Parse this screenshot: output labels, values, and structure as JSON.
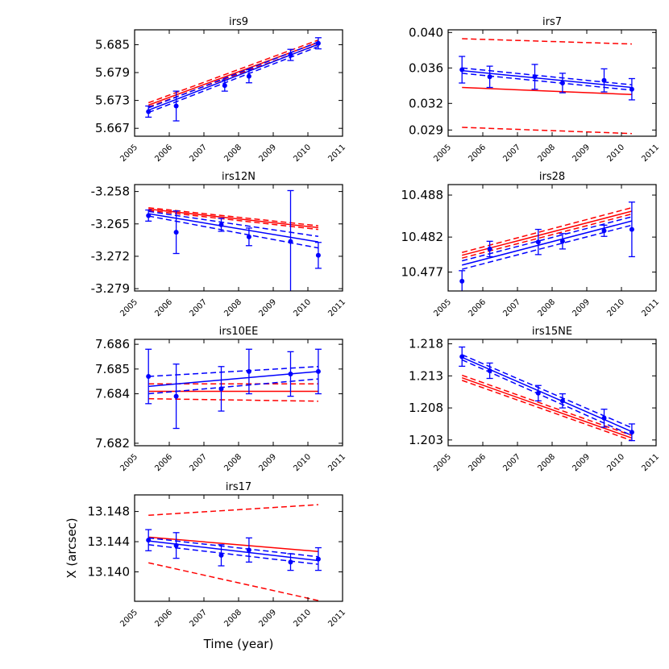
{
  "colors": {
    "fit_line": "#ff0000",
    "data": "#0000ff",
    "axes": "#000000"
  },
  "figure": {
    "xlabel": "Time (year)",
    "ylabel": "X (arcsec)"
  },
  "chart_data": [
    {
      "type": "line",
      "title": "irs9",
      "xlim": [
        2005,
        2011
      ],
      "ylim": [
        5.6653,
        5.6882
      ],
      "xticks": [
        "2005",
        "2006",
        "2007",
        "2008",
        "2009",
        "2010",
        "2011"
      ],
      "yticks": [
        5.667,
        5.673,
        5.679,
        5.685
      ],
      "ytick_labels": [
        "5.667",
        "5.673",
        "5.679",
        "5.685"
      ],
      "points": {
        "x": [
          2005.4,
          2006.2,
          2007.6,
          2008.3,
          2009.5,
          2010.3
        ],
        "y": [
          5.6706,
          5.6718,
          5.6762,
          5.6782,
          5.6828,
          5.6853
        ],
        "err": [
          0.0012,
          0.0032,
          0.0012,
          0.0014,
          0.0012,
          0.0012
        ]
      },
      "red_fit": {
        "x": [
          2005.4,
          2010.3
        ],
        "y": [
          5.672,
          5.6855
        ],
        "upper": [
          5.6725,
          5.686
        ],
        "lower": [
          5.6716,
          5.685
        ]
      },
      "blue_fit": {
        "x": [
          2005.4,
          2010.3
        ],
        "y": [
          5.6709,
          5.6851
        ],
        "upper": [
          5.6714,
          5.6856
        ],
        "lower": [
          5.6704,
          5.6846
        ]
      }
    },
    {
      "type": "line",
      "title": "irs7",
      "xlim": [
        2005,
        2011
      ],
      "ylim": [
        0.0283,
        0.0403
      ],
      "xticks": [
        "2005",
        "2006",
        "2007",
        "2008",
        "2009",
        "2010",
        "2011"
      ],
      "yticks": [
        0.029,
        0.032,
        0.036,
        0.04
      ],
      "ytick_labels": [
        "0.029",
        "0.032",
        "0.036",
        "0.040"
      ],
      "points": {
        "x": [
          2005.4,
          2006.2,
          2007.5,
          2008.3,
          2009.5,
          2010.3
        ],
        "y": [
          0.0358,
          0.035,
          0.035,
          0.0343,
          0.0346,
          0.0336
        ],
        "err": [
          0.0015,
          0.0012,
          0.0014,
          0.0011,
          0.0013,
          0.0012
        ]
      },
      "red_fit": {
        "x": [
          2005.4,
          2010.3
        ],
        "y": [
          0.0338,
          0.033
        ],
        "upper": [
          0.0393,
          0.0387
        ],
        "lower": [
          0.0293,
          0.0286
        ]
      },
      "blue_fit": {
        "x": [
          2005.4,
          2010.3
        ],
        "y": [
          0.0357,
          0.0338
        ],
        "upper": [
          0.036,
          0.0341
        ],
        "lower": [
          0.0354,
          0.0335
        ]
      }
    },
    {
      "type": "line",
      "title": "irs12N",
      "xlim": [
        2005,
        2011
      ],
      "ylim": [
        -3.2795,
        -3.2565
      ],
      "xticks": [
        "2005",
        "2006",
        "2007",
        "2008",
        "2009",
        "2010",
        "2011"
      ],
      "yticks": [
        -3.258,
        -3.265,
        -3.272,
        -3.279
      ],
      "ytick_labels": [
        "-3.258",
        "-3.265",
        "-3.272",
        "-3.279"
      ],
      "points": {
        "x": [
          2005.4,
          2006.2,
          2007.5,
          2008.3,
          2009.5,
          2010.3
        ],
        "y": [
          -3.2632,
          -3.2668,
          -3.2652,
          -3.2678,
          -3.2688,
          -3.2718
        ],
        "err": [
          0.0012,
          0.0046,
          0.0014,
          0.0019,
          0.011,
          0.0028
        ]
      },
      "red_fit": {
        "x": [
          2005.4,
          2010.3
        ],
        "y": [
          -3.2618,
          -3.2658
        ],
        "upper": [
          -3.2615,
          -3.2654
        ],
        "lower": [
          -3.2621,
          -3.2662
        ]
      },
      "blue_fit": {
        "x": [
          2005.4,
          2010.3
        ],
        "y": [
          -3.2628,
          -3.2689
        ],
        "upper": [
          -3.2623,
          -3.2677
        ],
        "lower": [
          -3.2633,
          -3.2702
        ]
      }
    },
    {
      "type": "line",
      "title": "irs28",
      "xlim": [
        2005,
        2011
      ],
      "ylim": [
        10.4743,
        10.4895
      ],
      "xticks": [
        "2005",
        "2006",
        "2007",
        "2008",
        "2009",
        "2010",
        "2011"
      ],
      "yticks": [
        10.477,
        10.482,
        10.488
      ],
      "ytick_labels": [
        "10.477",
        "10.482",
        "10.488"
      ],
      "points": {
        "x": [
          2005.4,
          2006.2,
          2007.6,
          2008.3,
          2009.5,
          2010.3
        ],
        "y": [
          10.4757,
          10.4803,
          10.4813,
          10.4814,
          10.4829,
          10.4831
        ],
        "err": [
          0.0015,
          0.0011,
          0.0018,
          0.0011,
          0.0008,
          0.0039
        ]
      },
      "red_fit": {
        "x": [
          2005.4,
          2010.3
        ],
        "y": [
          10.4794,
          10.4857
        ],
        "upper": [
          10.4798,
          10.4862
        ],
        "lower": [
          10.479,
          10.4853
        ]
      },
      "blue_fit": {
        "x": [
          2005.4,
          2010.3
        ],
        "y": [
          10.478,
          10.4843
        ],
        "upper": [
          10.4786,
          10.4849
        ],
        "lower": [
          10.4774,
          10.4837
        ]
      }
    },
    {
      "type": "line",
      "title": "irs10EE",
      "xlim": [
        2005,
        2011
      ],
      "ylim": [
        7.6819,
        7.6862
      ],
      "xticks": [
        "2005",
        "2006",
        "2007",
        "2008",
        "2009",
        "2010",
        "2011"
      ],
      "yticks": [
        7.682,
        7.684,
        7.685,
        7.686
      ],
      "ytick_labels": [
        "7.682",
        "7.684",
        "7.685",
        "7.686"
      ],
      "points": {
        "x": [
          2005.4,
          2006.2,
          2007.5,
          2008.3,
          2009.5,
          2010.3
        ],
        "y": [
          7.6847,
          7.6839,
          7.6842,
          7.6849,
          7.6848,
          7.6849
        ],
        "err": [
          0.0011,
          0.0013,
          0.0009,
          0.0009,
          0.0009,
          0.0009
        ]
      },
      "red_fit": {
        "x": [
          2005.4,
          2010.3
        ],
        "y": [
          7.6841,
          7.6841
        ],
        "upper": [
          7.6844,
          7.6844
        ],
        "lower": [
          7.6838,
          7.6837
        ]
      },
      "blue_fit": {
        "x": [
          2005.4,
          2010.3
        ],
        "y": [
          7.6843,
          7.6849
        ],
        "upper": [
          7.6847,
          7.6851
        ],
        "lower": [
          7.684,
          7.6846
        ]
      }
    },
    {
      "type": "line",
      "title": "irs15NE",
      "xlim": [
        2005,
        2011
      ],
      "ylim": [
        1.2021,
        1.2187
      ],
      "xticks": [
        "2005",
        "2006",
        "2007",
        "2008",
        "2009",
        "2010",
        "2011"
      ],
      "yticks": [
        1.203,
        1.208,
        1.213,
        1.218
      ],
      "ytick_labels": [
        "1.203",
        "1.208",
        "1.213",
        "1.218"
      ],
      "points": {
        "x": [
          2005.4,
          2006.2,
          2007.6,
          2008.3,
          2009.5,
          2010.3
        ],
        "y": [
          1.216,
          1.2138,
          1.2103,
          1.2091,
          1.2064,
          1.2042
        ],
        "err": [
          0.0015,
          0.0012,
          0.0012,
          0.0011,
          0.0014,
          0.0013
        ]
      },
      "red_fit": {
        "x": [
          2005.4,
          2010.3
        ],
        "y": [
          1.2127,
          1.2033
        ],
        "upper": [
          1.2131,
          1.2037
        ],
        "lower": [
          1.2123,
          1.2029
        ]
      },
      "blue_fit": {
        "x": [
          2005.4,
          2010.3
        ],
        "y": [
          1.2159,
          1.2043
        ],
        "upper": [
          1.2163,
          1.2049
        ],
        "lower": [
          1.2155,
          1.2037
        ]
      }
    },
    {
      "type": "line",
      "title": "irs17",
      "xlim": [
        2005,
        2011
      ],
      "ylim": [
        13.1361,
        13.1502
      ],
      "xticks": [
        "2005",
        "2006",
        "2007",
        "2008",
        "2009",
        "2010",
        "2011"
      ],
      "yticks": [
        13.14,
        13.144,
        13.148
      ],
      "ytick_labels": [
        "13.140",
        "13.144",
        "13.148"
      ],
      "points": {
        "x": [
          2005.4,
          2006.2,
          2007.5,
          2008.3,
          2009.5,
          2010.3
        ],
        "y": [
          13.1442,
          13.1435,
          13.1422,
          13.1429,
          13.1413,
          13.1417
        ],
        "err": [
          0.0014,
          0.0017,
          0.0014,
          0.0016,
          0.0011,
          0.0015
        ]
      },
      "red_fit": {
        "x": [
          2005.4,
          2010.3
        ],
        "y": [
          13.1446,
          13.1427
        ],
        "upper": [
          13.1475,
          13.1489
        ],
        "lower": [
          13.1412,
          13.1362
        ]
      },
      "blue_fit": {
        "x": [
          2005.4,
          2010.3
        ],
        "y": [
          13.1441,
          13.1415
        ],
        "upper": [
          13.1445,
          13.142
        ],
        "lower": [
          13.1436,
          13.141
        ]
      }
    }
  ]
}
